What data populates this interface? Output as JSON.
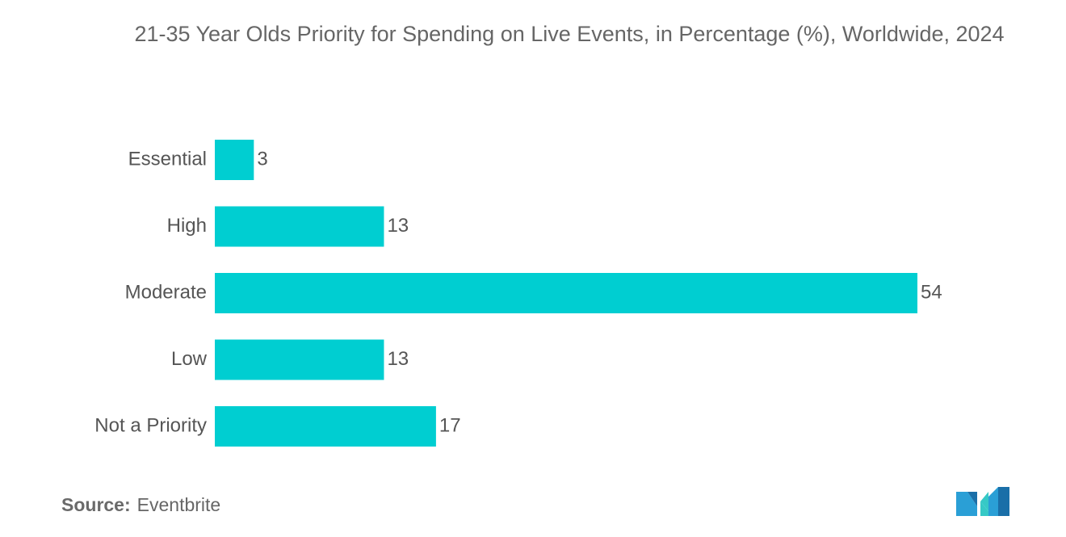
{
  "title": "21-35 Year Olds Priority for Spending on Live Events, in Percentage (%), Worldwide, 2024",
  "source": {
    "label": "Source:",
    "value": "Eventbrite"
  },
  "colors": {
    "bar": "#00CED1",
    "label_text": "#555555"
  },
  "chart_data": {
    "type": "bar",
    "orientation": "horizontal",
    "title": "21-35 Year Olds Priority for Spending on Live Events, in Percentage (%), Worldwide, 2024",
    "categories": [
      "Essential",
      "High",
      "Moderate",
      "Low",
      "Not a Priority"
    ],
    "values": [
      3,
      13,
      54,
      13,
      17
    ],
    "xlabel": "",
    "ylabel": "",
    "xlim": [
      0,
      54
    ],
    "grid": false,
    "legend": "none",
    "data_labels": true
  }
}
